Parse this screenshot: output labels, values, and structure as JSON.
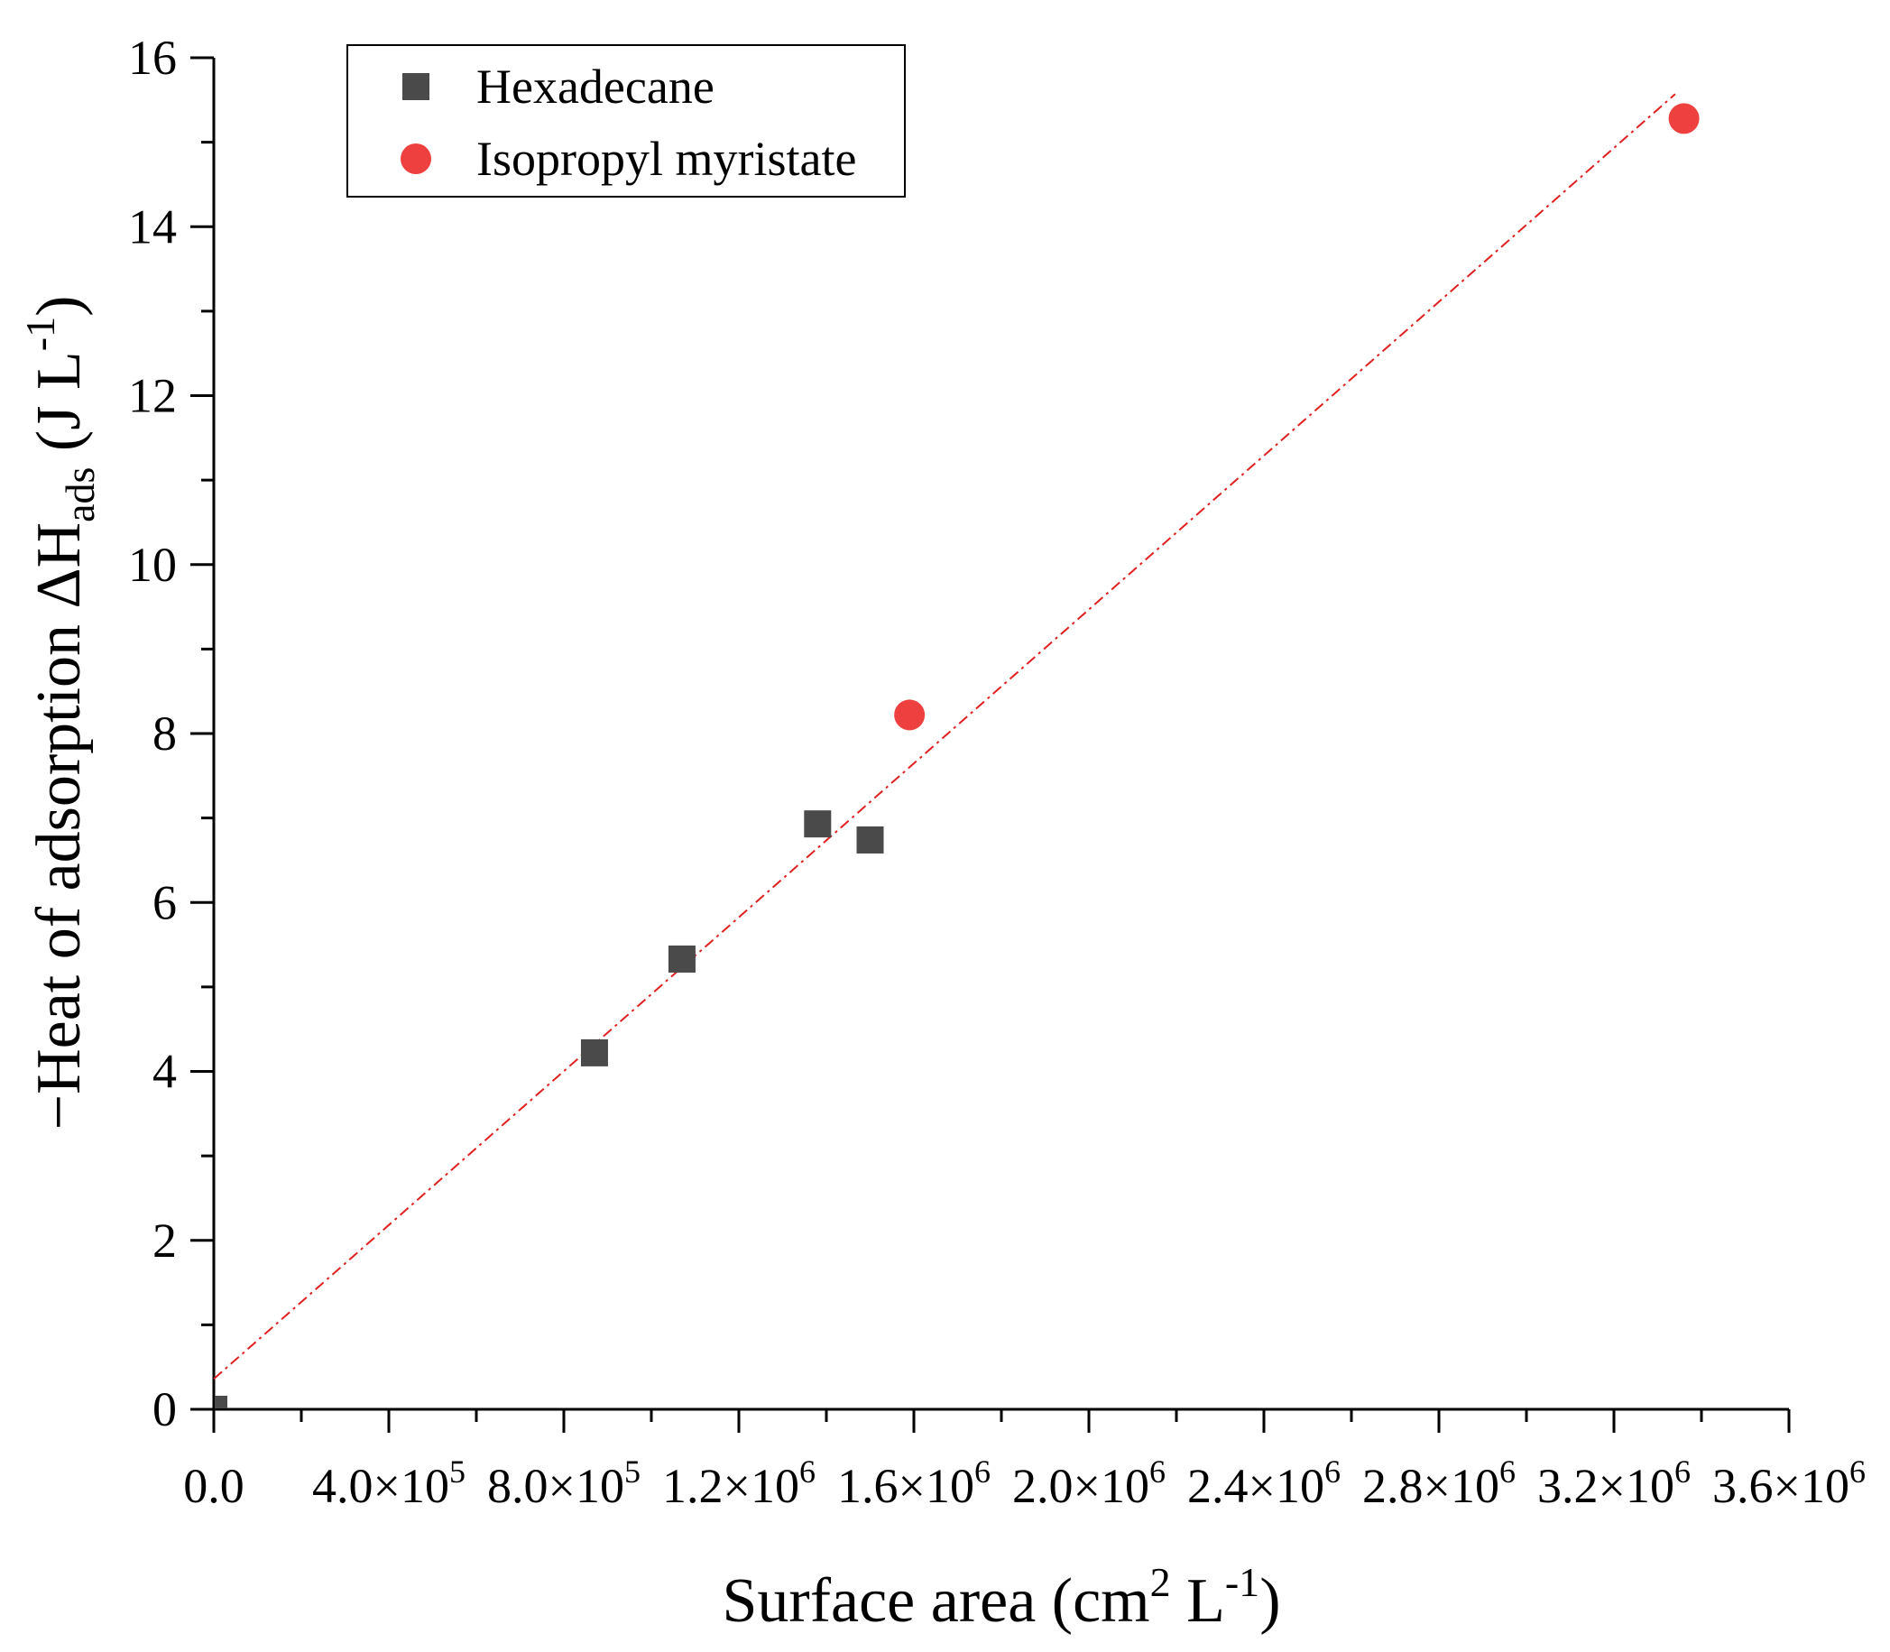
{
  "chart_data": {
    "type": "scatter",
    "xlim": [
      0,
      3600000
    ],
    "ylim": [
      0,
      16
    ],
    "x_ticks": [
      {
        "value": 0,
        "label": "0.0",
        "exp": ""
      },
      {
        "value": 400000,
        "label": "4.0×10",
        "exp": "5"
      },
      {
        "value": 800000,
        "label": "8.0×10",
        "exp": "5"
      },
      {
        "value": 1200000,
        "label": "1.2×10",
        "exp": "6"
      },
      {
        "value": 1600000,
        "label": "1.6×10",
        "exp": "6"
      },
      {
        "value": 2000000,
        "label": "2.0×10",
        "exp": "6"
      },
      {
        "value": 2400000,
        "label": "2.4×10",
        "exp": "6"
      },
      {
        "value": 2800000,
        "label": "2.8×10",
        "exp": "6"
      },
      {
        "value": 3200000,
        "label": "3.2×10",
        "exp": "6"
      },
      {
        "value": 3600000,
        "label": "3.6×10",
        "exp": "6"
      }
    ],
    "y_ticks": [
      {
        "value": 0,
        "label": "0"
      },
      {
        "value": 2,
        "label": "2"
      },
      {
        "value": 4,
        "label": "4"
      },
      {
        "value": 6,
        "label": "6"
      },
      {
        "value": 8,
        "label": "8"
      },
      {
        "value": 10,
        "label": "10"
      },
      {
        "value": 12,
        "label": "12"
      },
      {
        "value": 14,
        "label": "14"
      },
      {
        "value": 16,
        "label": "16"
      }
    ],
    "xlabel": {
      "main": "Surface area (cm",
      "sup1": "2",
      "mid": " L",
      "sup2": "-1",
      "end": ")"
    },
    "ylabel": {
      "main": "−Heat of adsorption ΔH",
      "sub": "ads",
      "mid": " (J L",
      "sup": "-1",
      "end": ")"
    },
    "series": [
      {
        "name": "Hexadecane",
        "marker": "square",
        "color": "#4a4a4a",
        "points": [
          {
            "x": 0,
            "y": 0
          },
          {
            "x": 870000,
            "y": 4.22
          },
          {
            "x": 1070000,
            "y": 5.33
          },
          {
            "x": 1380000,
            "y": 6.93
          },
          {
            "x": 1500000,
            "y": 6.74
          }
        ]
      },
      {
        "name": "Isopropyl myristate",
        "marker": "circle",
        "color": "#ef4040",
        "points": [
          {
            "x": 1590000,
            "y": 8.22
          },
          {
            "x": 3360000,
            "y": 15.28
          }
        ]
      }
    ],
    "fit_line": {
      "style": "dash-dot",
      "color": "#e02020",
      "start": {
        "x": 0,
        "y": 0.36
      },
      "end": {
        "x": 3340000,
        "y": 15.57
      }
    },
    "legend_position": "top-left",
    "grid": false
  }
}
